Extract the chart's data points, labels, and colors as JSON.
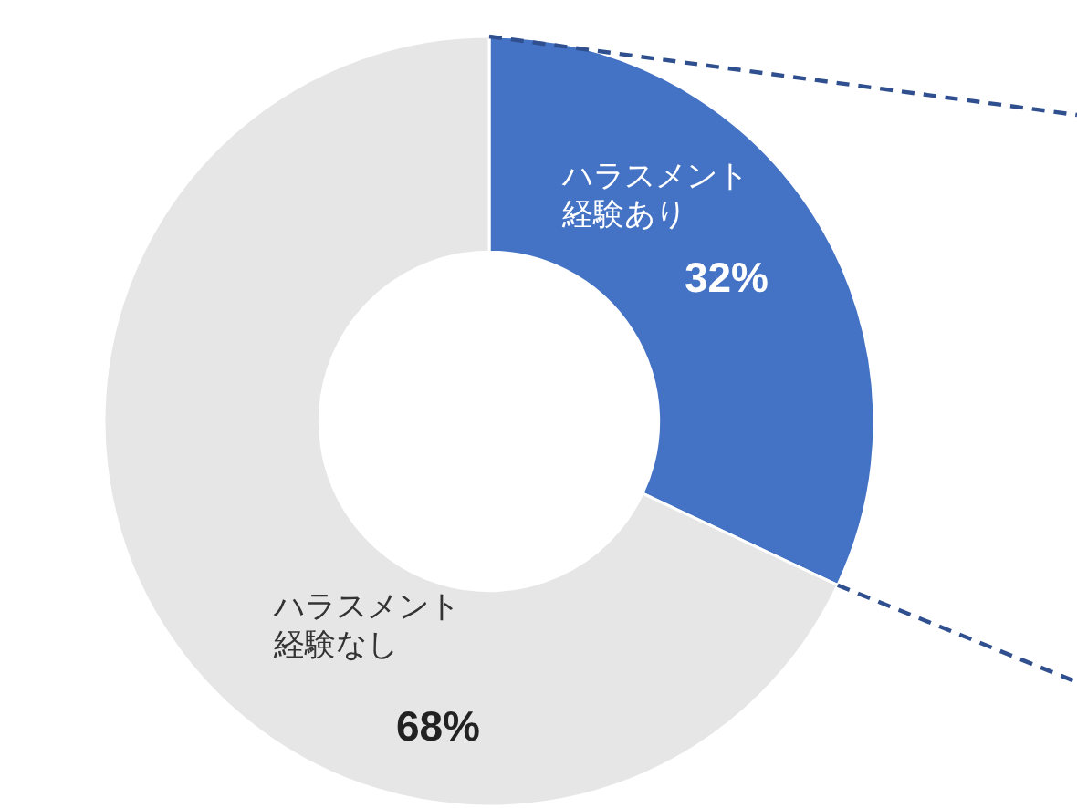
{
  "chart_data": {
    "type": "donut",
    "categories": [
      "ハラスメント経験あり",
      "ハラスメント経験なし"
    ],
    "values": [
      32,
      68
    ],
    "colors": [
      "#4472c4",
      "#e6e6e6"
    ],
    "value_labels": [
      "32%",
      "68%"
    ]
  }
}
